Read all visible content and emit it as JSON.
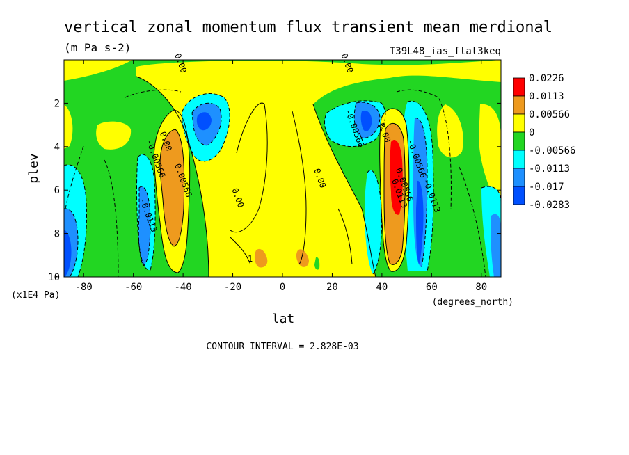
{
  "chart_data": {
    "type": "heatmap",
    "title": "vertical zonal momentum flux transient mean merdional",
    "units": "(m Pa s-2)",
    "dataset_label": "T39L48_ias_flat3keq",
    "xlabel": "lat",
    "x_units": "(degrees_north)",
    "ylabel": "plev",
    "y_units": "(x1E4 Pa)",
    "x_ticks": [
      "-80",
      "-60",
      "-40",
      "-20",
      "0",
      "20",
      "40",
      "60",
      "80"
    ],
    "x_tick_values": [
      -80,
      -60,
      -40,
      -20,
      0,
      20,
      40,
      60,
      80
    ],
    "y_ticks": [
      "2",
      "4",
      "6",
      "8",
      "10"
    ],
    "y_tick_values": [
      2,
      4,
      6,
      8,
      10
    ],
    "xlim": [
      -87.9,
      87.9
    ],
    "ylim": [
      10,
      0
    ],
    "y_reversed": true,
    "contour_interval_text": "CONTOUR INTERVAL = 2.828E-03",
    "legend": {
      "placement": "right",
      "levels": [
        "0.0226",
        "0.0113",
        "0.00566",
        "0",
        "-0.00566",
        "-0.0113",
        "-0.017",
        "-0.0283"
      ],
      "colors": [
        "#ff0000",
        "#ee9a1e",
        "#ffff00",
        "#22d622",
        "#00ffff",
        "#1e90ff",
        "#0050ff"
      ]
    },
    "contour_labels": [
      {
        "text": "0.00",
        "lat": -42,
        "p": 0.2
      },
      {
        "text": "0.00",
        "lat": 25,
        "p": 0.2
      },
      {
        "text": "-0.00566",
        "lat": 28,
        "p": 3.2
      },
      {
        "text": "0.00",
        "lat": -48,
        "p": 3.8
      },
      {
        "text": "-0.00566",
        "lat": -52,
        "p": 4.6
      },
      {
        "text": "0.00566",
        "lat": -41,
        "p": 5.6
      },
      {
        "text": "-0.0113",
        "lat": -55,
        "p": 7.2
      },
      {
        "text": "0.00",
        "lat": -19,
        "p": 6.4
      },
      {
        "text": "0.00",
        "lat": 14,
        "p": 5.5
      },
      {
        "text": "0.00",
        "lat": 40,
        "p": 3.4
      },
      {
        "text": "0.0113",
        "lat": 46,
        "p": 6.2
      },
      {
        "text": "0.00566",
        "lat": 48,
        "p": 5.8
      },
      {
        "text": "-0.00566",
        "lat": 53,
        "p": 4.6
      },
      {
        "text": "-0.0113",
        "lat": 59,
        "p": 6.3
      },
      {
        "text": "1",
        "lat": -13,
        "p": 9.3
      }
    ]
  }
}
